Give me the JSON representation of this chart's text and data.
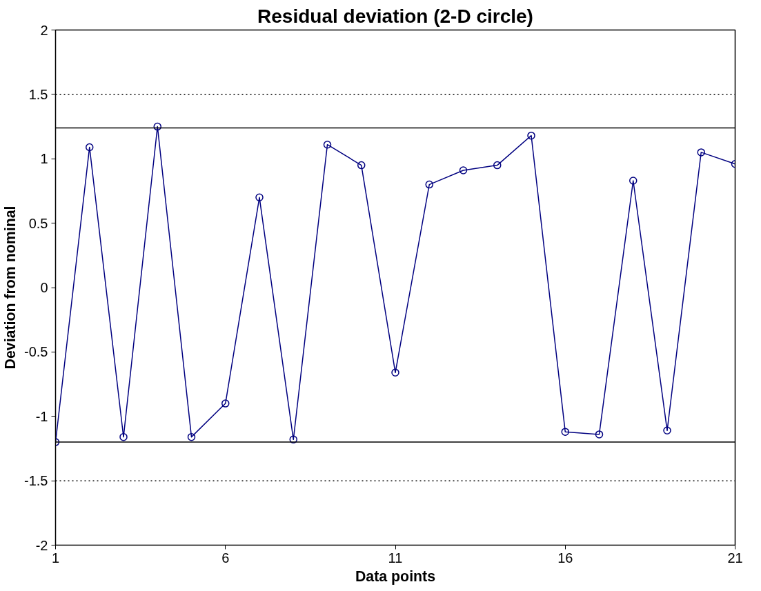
{
  "chart_data": {
    "type": "line",
    "title": "Residual deviation (2-D circle)",
    "xlabel": "Data points",
    "ylabel": "Deviation from nominal",
    "x": [
      1,
      2,
      3,
      4,
      5,
      6,
      7,
      8,
      9,
      10,
      11,
      12,
      13,
      14,
      15,
      16,
      17,
      18,
      19,
      20,
      21
    ],
    "series": [
      {
        "color": "#000080",
        "values": [
          -1.2,
          1.09,
          -1.16,
          1.25,
          -1.16,
          -0.9,
          0.7,
          -1.18,
          1.11,
          0.95,
          -0.66,
          0.8,
          0.91,
          0.95,
          1.18,
          -1.12,
          -1.14,
          0.83,
          -1.11,
          1.05,
          0.96
        ]
      }
    ],
    "xlim": [
      1,
      21
    ],
    "xticks": [
      1,
      6,
      11,
      16,
      21
    ],
    "ylim": [
      -2,
      2
    ],
    "yticks": [
      -2,
      -1.5,
      -1,
      -0.5,
      0,
      0.5,
      1,
      1.5,
      2
    ],
    "ref_lines": [
      {
        "axis": "y",
        "value": 1.5,
        "label": null,
        "line_style": "dotted",
        "color": "#000000"
      },
      {
        "axis": "y",
        "value": 1.24,
        "label": null,
        "line_style": "solid",
        "color": "#000000"
      },
      {
        "axis": "y",
        "value": -1.2,
        "label": null,
        "line_style": "solid",
        "color": "#000000"
      },
      {
        "axis": "y",
        "value": -1.5,
        "label": null,
        "line_style": "dotted",
        "color": "#000000"
      }
    ],
    "grid": false,
    "marker": "circle",
    "line_style": "solid"
  }
}
